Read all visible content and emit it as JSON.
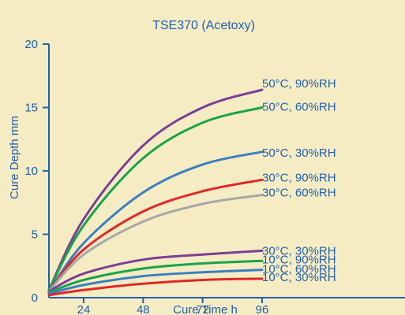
{
  "chart_data": {
    "type": "line",
    "title": "TSE370 (Acetoxy)",
    "xlabel": "Cure Time  h",
    "ylabel": "Cure Depth  mm",
    "xlim": [
      10,
      96
    ],
    "ylim": [
      0,
      20
    ],
    "xticks": [
      24,
      48,
      72,
      96
    ],
    "yticks": [
      0,
      5,
      10,
      15,
      20
    ],
    "grid": false,
    "legend": "inline labels at line ends",
    "series": [
      {
        "name": "50°C, 90%RH",
        "color": "#7b3f98",
        "x": [
          10,
          24,
          48,
          72,
          96
        ],
        "y": [
          0.6,
          6.2,
          12.0,
          15.0,
          16.4
        ]
      },
      {
        "name": "50°C, 60%RH",
        "color": "#1aa34a",
        "x": [
          10,
          24,
          48,
          72,
          96
        ],
        "y": [
          0.6,
          5.7,
          11.0,
          13.8,
          15.0
        ]
      },
      {
        "name": "50°C, 30%RH",
        "color": "#3a7fc1",
        "x": [
          10,
          24,
          48,
          72,
          96
        ],
        "y": [
          0.5,
          4.3,
          8.3,
          10.5,
          11.5
        ]
      },
      {
        "name": "30°C, 90%RH",
        "color": "#e02727",
        "x": [
          10,
          24,
          48,
          72,
          96
        ],
        "y": [
          0.5,
          3.8,
          6.8,
          8.4,
          9.3
        ]
      },
      {
        "name": "30°C, 60%RH",
        "color": "#a7a7a7",
        "x": [
          10,
          24,
          48,
          72,
          96
        ],
        "y": [
          0.5,
          3.4,
          6.0,
          7.4,
          8.1
        ]
      },
      {
        "name": "30°C, 30%RH",
        "color": "#7b3f98",
        "x": [
          10,
          24,
          48,
          72,
          96
        ],
        "y": [
          0.5,
          1.9,
          3.0,
          3.4,
          3.7
        ]
      },
      {
        "name": "10°C, 90%RH",
        "color": "#1aa34a",
        "x": [
          10,
          24,
          48,
          72,
          96
        ],
        "y": [
          0.4,
          1.4,
          2.3,
          2.7,
          2.9
        ]
      },
      {
        "name": "10°C, 60%RH",
        "color": "#3a7fc1",
        "x": [
          10,
          24,
          48,
          72,
          96
        ],
        "y": [
          0.3,
          1.0,
          1.7,
          2.0,
          2.2
        ]
      },
      {
        "name": "10°C, 30%RH",
        "color": "#e02727",
        "x": [
          10,
          24,
          48,
          72,
          96
        ],
        "y": [
          0.2,
          0.6,
          1.1,
          1.4,
          1.5
        ]
      }
    ]
  }
}
